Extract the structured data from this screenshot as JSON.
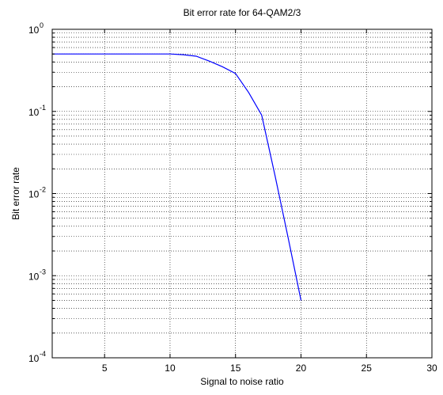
{
  "chart_data": {
    "type": "line",
    "title": "Bit error rate for 64-QAM2/3",
    "xlabel": "Signal to noise ratio",
    "ylabel": "Bit error rate",
    "xlim": [
      1,
      30
    ],
    "ylim": [
      0.0001,
      1
    ],
    "yscale": "log",
    "grid": true,
    "x_ticks": [
      {
        "value": 5,
        "label": "5"
      },
      {
        "value": 10,
        "label": "10"
      },
      {
        "value": 15,
        "label": "15"
      },
      {
        "value": 20,
        "label": "20"
      },
      {
        "value": 25,
        "label": "25"
      },
      {
        "value": 30,
        "label": "30"
      }
    ],
    "y_ticks": [
      {
        "value": 1,
        "base": "10",
        "exp": "0"
      },
      {
        "value": 0.1,
        "base": "10",
        "exp": "-1"
      },
      {
        "value": 0.01,
        "base": "10",
        "exp": "-2"
      },
      {
        "value": 0.001,
        "base": "10",
        "exp": "-3"
      },
      {
        "value": 0.0001,
        "base": "10",
        "exp": "-4"
      }
    ],
    "series": [
      {
        "color": "#0000ff",
        "x": [
          1,
          10,
          11,
          12,
          13,
          14,
          15,
          16,
          17,
          18,
          19,
          20
        ],
        "y": [
          0.5,
          0.5,
          0.49,
          0.47,
          0.41,
          0.35,
          0.29,
          0.17,
          0.09,
          0.017,
          0.003,
          0.0005
        ]
      }
    ]
  }
}
